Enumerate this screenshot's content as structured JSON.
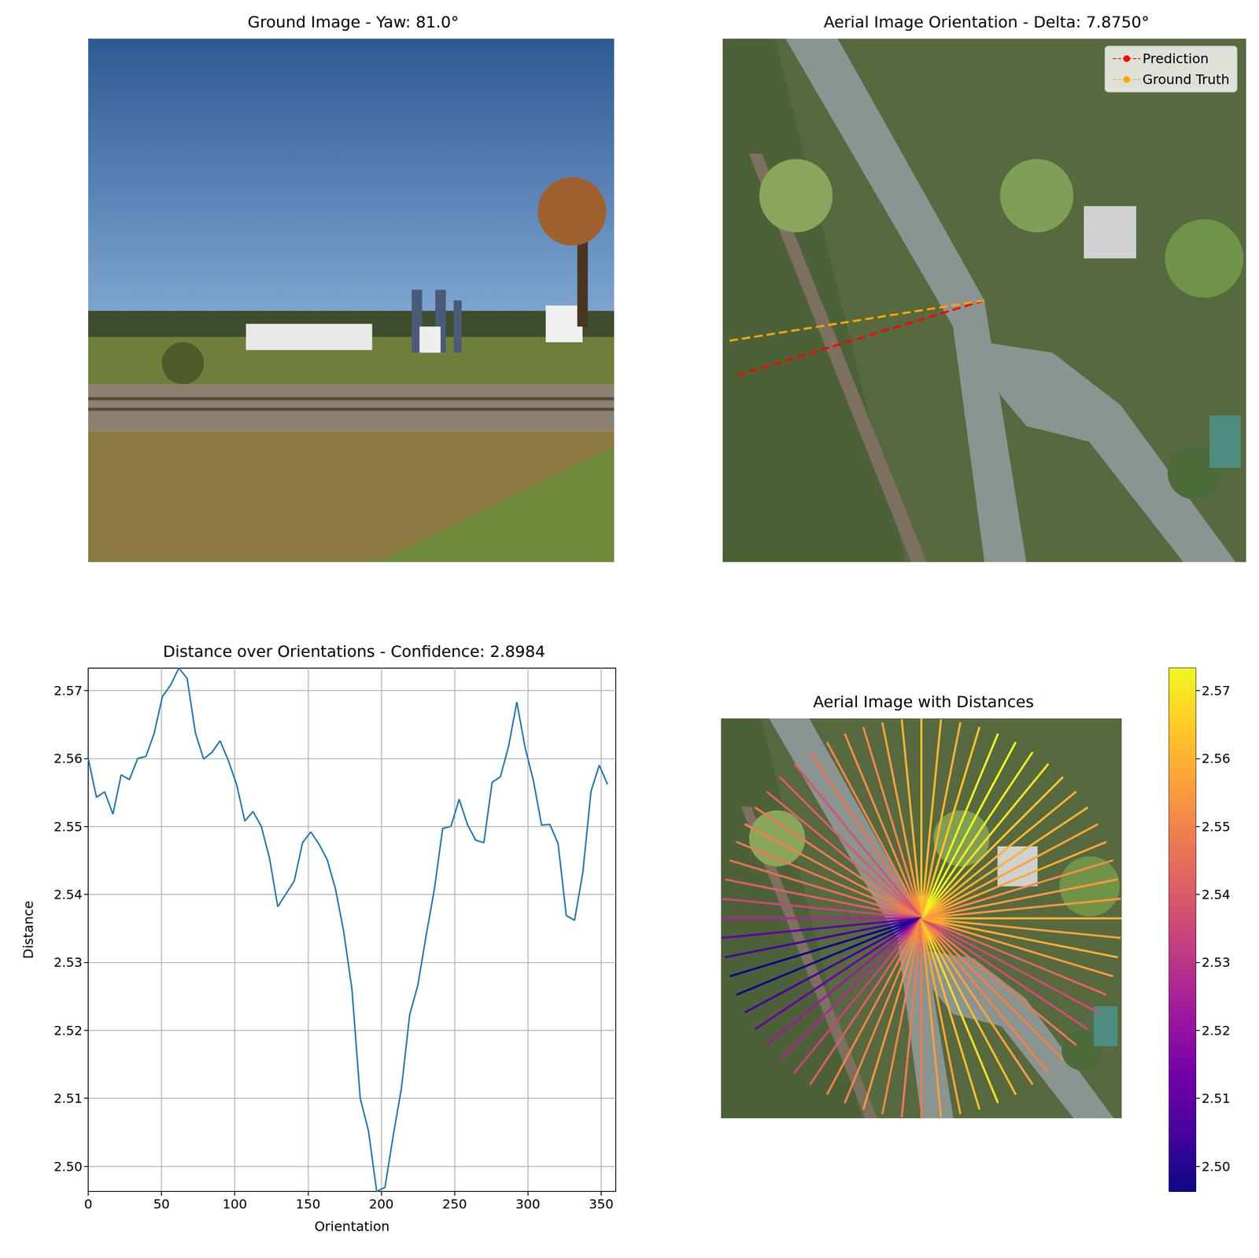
{
  "chart_data": [
    {
      "type": "image",
      "title": "Ground Image - Yaw: 81.0°"
    },
    {
      "type": "image",
      "title": "Aerial Image Orientation - Delta: 7.8750°",
      "legend": "upper right",
      "series": [
        {
          "name": "Prediction",
          "color": "#ff0000",
          "line_style": "dashed",
          "values": [
            196.875
          ]
        },
        {
          "name": "Ground Truth",
          "color": "#ffa500",
          "line_style": "dashed",
          "values": [
            189.0
          ]
        }
      ]
    },
    {
      "type": "line",
      "title": "Distance over Orientations - Confidence: 2.8984",
      "x_label": "Orientation",
      "y_label": "Distance",
      "color": "#1f77b4",
      "grid": true,
      "x": [
        0,
        5.625,
        11.25,
        16.875,
        22.5,
        28.125,
        33.75,
        39.375,
        45,
        50.625,
        56.25,
        61.875,
        67.5,
        73.125,
        78.75,
        84.375,
        90,
        95.625,
        101.25,
        106.875,
        112.5,
        118.125,
        123.75,
        129.375,
        135,
        140.625,
        146.25,
        151.875,
        157.5,
        163.125,
        168.75,
        174.375,
        180,
        185.625,
        191.25,
        196.875,
        202.5,
        208.125,
        213.75,
        219.375,
        225,
        230.625,
        236.25,
        241.875,
        247.5,
        253.125,
        258.75,
        264.375,
        270,
        275.625,
        281.25,
        286.875,
        292.5,
        298.125,
        303.75,
        309.375,
        315,
        320.625,
        326.25,
        331.875,
        337.5,
        343.125,
        348.75,
        354.375
      ],
      "values": [
        2.56,
        2.5543,
        2.5551,
        2.5518,
        2.5576,
        2.5569,
        2.56,
        2.5603,
        2.5637,
        2.5691,
        2.5708,
        2.5733,
        2.5718,
        2.5638,
        2.5599,
        2.5609,
        2.5626,
        2.5597,
        2.5562,
        2.5508,
        2.5522,
        2.55,
        2.5453,
        2.5382,
        2.5401,
        2.542,
        2.5476,
        2.5492,
        2.5474,
        2.5451,
        2.5408,
        2.5345,
        2.526,
        2.51,
        2.5052,
        2.4963,
        2.4969,
        2.5045,
        2.5115,
        2.5223,
        2.5267,
        2.534,
        2.5408,
        2.5497,
        2.55,
        2.554,
        2.5503,
        2.548,
        2.5476,
        2.5565,
        2.5573,
        2.5618,
        2.5683,
        2.5616,
        2.5568,
        2.5502,
        2.5503,
        2.5475,
        2.5369,
        2.5362,
        2.5432,
        2.5552,
        2.559,
        2.5562
      ],
      "xlim": [
        0,
        360
      ],
      "xticks": [
        0,
        50,
        100,
        150,
        200,
        250,
        300,
        350
      ],
      "ylim": [
        2.4963,
        2.5733
      ],
      "yticks": [
        {
          "value": 2.5,
          "label": "2.50"
        },
        2.51,
        2.52,
        2.53,
        2.54,
        2.55,
        2.56,
        2.57
      ]
    },
    {
      "type": "radial",
      "title": "Aerial Image with Distances",
      "x": [
        0,
        5.625,
        11.25,
        16.875,
        22.5,
        28.125,
        33.75,
        39.375,
        45,
        50.625,
        56.25,
        61.875,
        67.5,
        73.125,
        78.75,
        84.375,
        90,
        95.625,
        101.25,
        106.875,
        112.5,
        118.125,
        123.75,
        129.375,
        135,
        140.625,
        146.25,
        151.875,
        157.5,
        163.125,
        168.75,
        174.375,
        180,
        185.625,
        191.25,
        196.875,
        202.5,
        208.125,
        213.75,
        219.375,
        225,
        230.625,
        236.25,
        241.875,
        247.5,
        253.125,
        258.75,
        264.375,
        270,
        275.625,
        281.25,
        286.875,
        292.5,
        298.125,
        303.75,
        309.375,
        315,
        320.625,
        326.25,
        331.875,
        337.5,
        343.125,
        348.75,
        354.375
      ],
      "values": [
        2.56,
        2.5543,
        2.5551,
        2.5518,
        2.5576,
        2.5569,
        2.56,
        2.5603,
        2.5637,
        2.5691,
        2.5708,
        2.5733,
        2.5718,
        2.5638,
        2.5599,
        2.5609,
        2.5626,
        2.5597,
        2.5562,
        2.5508,
        2.5522,
        2.55,
        2.5453,
        2.5382,
        2.5401,
        2.542,
        2.5476,
        2.5492,
        2.5474,
        2.5451,
        2.5408,
        2.5345,
        2.526,
        2.51,
        2.5052,
        2.4963,
        2.4969,
        2.5045,
        2.5115,
        2.5223,
        2.5267,
        2.534,
        2.5408,
        2.5497,
        2.55,
        2.554,
        2.5503,
        2.548,
        2.5476,
        2.5565,
        2.5573,
        2.5618,
        2.5683,
        2.5616,
        2.5568,
        2.5502,
        2.5503,
        2.5475,
        2.5369,
        2.5362,
        2.5432,
        2.5552,
        2.559,
        2.5562
      ],
      "colorbar_range": [
        2.4963,
        2.5733
      ],
      "colorbar_ticks": [
        {
          "value": 2.5,
          "label": "2.50"
        },
        2.51,
        2.52,
        2.53,
        2.54,
        2.55,
        2.56,
        2.57
      ]
    }
  ]
}
